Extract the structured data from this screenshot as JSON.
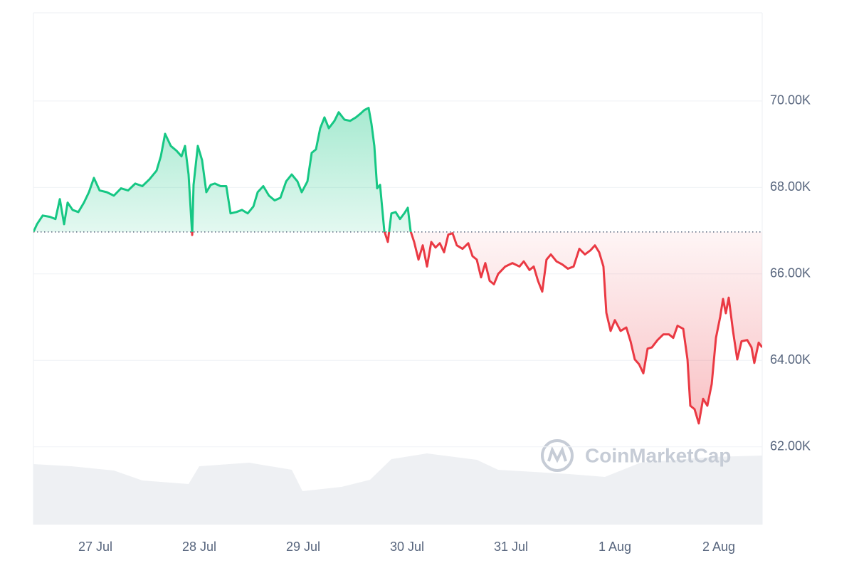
{
  "chart_data": {
    "type": "line",
    "watermark": "CoinMarketCap",
    "baseline": 66971,
    "color_up": "#16c784",
    "color_down": "#ea3943",
    "grid": true,
    "xlim": [
      -0.596,
      6.418
    ],
    "xticks": [
      {
        "value": 0,
        "label": "27 Jul"
      },
      {
        "value": 1,
        "label": "28 Jul"
      },
      {
        "value": 2,
        "label": "29 Jul"
      },
      {
        "value": 3,
        "label": "30 Jul"
      },
      {
        "value": 4,
        "label": "31 Jul"
      },
      {
        "value": 5,
        "label": "1 Aug"
      },
      {
        "value": 6,
        "label": "2 Aug"
      }
    ],
    "ylim": [
      60200,
      72040
    ],
    "yticks": [
      {
        "value": 62000,
        "label": "62.00K"
      },
      {
        "value": 64000,
        "label": "64.00K"
      },
      {
        "value": 66000,
        "label": "66.00K"
      },
      {
        "value": 68000,
        "label": "68.00K"
      },
      {
        "value": 70000,
        "label": "70.00K"
      }
    ],
    "x": [
      -0.596,
      -0.562,
      -0.507,
      -0.438,
      -0.384,
      -0.342,
      -0.301,
      -0.267,
      -0.219,
      -0.164,
      -0.11,
      -0.062,
      -0.014,
      0.041,
      0.11,
      0.178,
      0.247,
      0.315,
      0.384,
      0.452,
      0.521,
      0.589,
      0.63,
      0.671,
      0.726,
      0.781,
      0.829,
      0.863,
      0.897,
      0.932,
      0.945,
      0.986,
      1.027,
      1.068,
      1.11,
      1.151,
      1.205,
      1.26,
      1.301,
      1.356,
      1.411,
      1.466,
      1.521,
      1.562,
      1.616,
      1.671,
      1.726,
      1.781,
      1.836,
      1.89,
      1.945,
      1.986,
      2.041,
      2.082,
      2.123,
      2.164,
      2.205,
      2.247,
      2.301,
      2.342,
      2.397,
      2.452,
      2.507,
      2.548,
      2.589,
      2.63,
      2.658,
      2.685,
      2.712,
      2.74,
      2.781,
      2.815,
      2.849,
      2.89,
      2.932,
      2.973,
      3.007,
      3.034,
      3.068,
      3.11,
      3.151,
      3.192,
      3.233,
      3.274,
      3.315,
      3.356,
      3.397,
      3.438,
      3.479,
      3.534,
      3.589,
      3.63,
      3.671,
      3.712,
      3.753,
      3.795,
      3.836,
      3.877,
      3.945,
      4.014,
      4.082,
      4.123,
      4.178,
      4.219,
      4.26,
      4.301,
      4.342,
      4.384,
      4.438,
      4.493,
      4.548,
      4.603,
      4.658,
      4.712,
      4.767,
      4.808,
      4.849,
      4.89,
      4.918,
      4.959,
      5.0,
      5.055,
      5.11,
      5.151,
      5.192,
      5.233,
      5.274,
      5.315,
      5.356,
      5.411,
      5.466,
      5.521,
      5.562,
      5.603,
      5.658,
      5.699,
      5.726,
      5.767,
      5.808,
      5.849,
      5.89,
      5.932,
      5.973,
      6.014,
      6.041,
      6.068,
      6.096,
      6.137,
      6.178,
      6.219,
      6.274,
      6.315,
      6.342,
      6.384,
      6.418
    ],
    "values": [
      66971,
      67150,
      67350,
      67320,
      67270,
      67730,
      67150,
      67650,
      67480,
      67430,
      67650,
      67890,
      68220,
      67930,
      67890,
      67810,
      67980,
      67930,
      68090,
      68030,
      68190,
      68390,
      68720,
      69240,
      68960,
      68850,
      68720,
      68960,
      68300,
      66900,
      68060,
      68960,
      68630,
      67890,
      68060,
      68090,
      68030,
      68030,
      67400,
      67430,
      67480,
      67400,
      67560,
      67890,
      68030,
      67810,
      67700,
      67760,
      68140,
      68300,
      68140,
      67890,
      68140,
      68800,
      68880,
      69370,
      69620,
      69370,
      69540,
      69740,
      69570,
      69540,
      69620,
      69700,
      69790,
      69840,
      69460,
      68960,
      67980,
      68060,
      66990,
      66740,
      67400,
      67430,
      67270,
      67400,
      67530,
      66990,
      66740,
      66330,
      66660,
      66170,
      66740,
      66610,
      66710,
      66500,
      66910,
      66940,
      66660,
      66580,
      66710,
      66410,
      66330,
      65920,
      66250,
      65840,
      65760,
      66000,
      66170,
      66250,
      66170,
      66290,
      66090,
      66170,
      65840,
      65590,
      66330,
      66450,
      66290,
      66220,
      66120,
      66170,
      66580,
      66450,
      66550,
      66660,
      66500,
      66170,
      65100,
      64680,
      64930,
      64680,
      64760,
      64440,
      64020,
      63910,
      63700,
      64270,
      64300,
      64470,
      64600,
      64600,
      64520,
      64800,
      64730,
      64020,
      62950,
      62870,
      62540,
      63110,
      62950,
      63450,
      64520,
      65010,
      65420,
      65090,
      65450,
      64680,
      64020,
      64440,
      64470,
      64300,
      63940,
      64410,
      64300
    ]
  }
}
